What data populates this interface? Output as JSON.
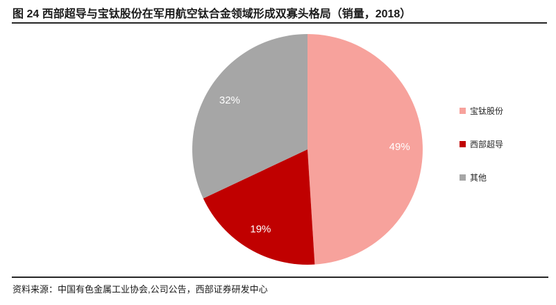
{
  "figure": {
    "title": "图 24  西部超导与宝钛股份在军用航空钛合金领域形成双寡头格局（销量，2018）",
    "source": "资料来源：中国有色金属工业协会,公司公告，西部证券研发中心"
  },
  "colors": {
    "baoti_pink": "#F7A29C",
    "western_superconducting_red": "#C00000",
    "other_gray": "#A6A6A6",
    "divider": "#262626",
    "data_label_text": "#FFFFFF"
  },
  "chart_data": {
    "type": "pie",
    "title": "西部超导与宝钛股份在军用航空钛合金领域形成双寡头格局（销量，2018）",
    "categories": [
      "宝钛股份",
      "西部超导",
      "其他"
    ],
    "values": [
      49,
      19,
      32
    ],
    "unit": "percent",
    "colors": [
      "#F7A29C",
      "#C00000",
      "#A6A6A6"
    ],
    "data_labels": [
      "49%",
      "19%",
      "32%"
    ],
    "start_angle": "12-oclock",
    "direction": "clockwise",
    "legend_position": "right",
    "data_label_position": "inside"
  }
}
